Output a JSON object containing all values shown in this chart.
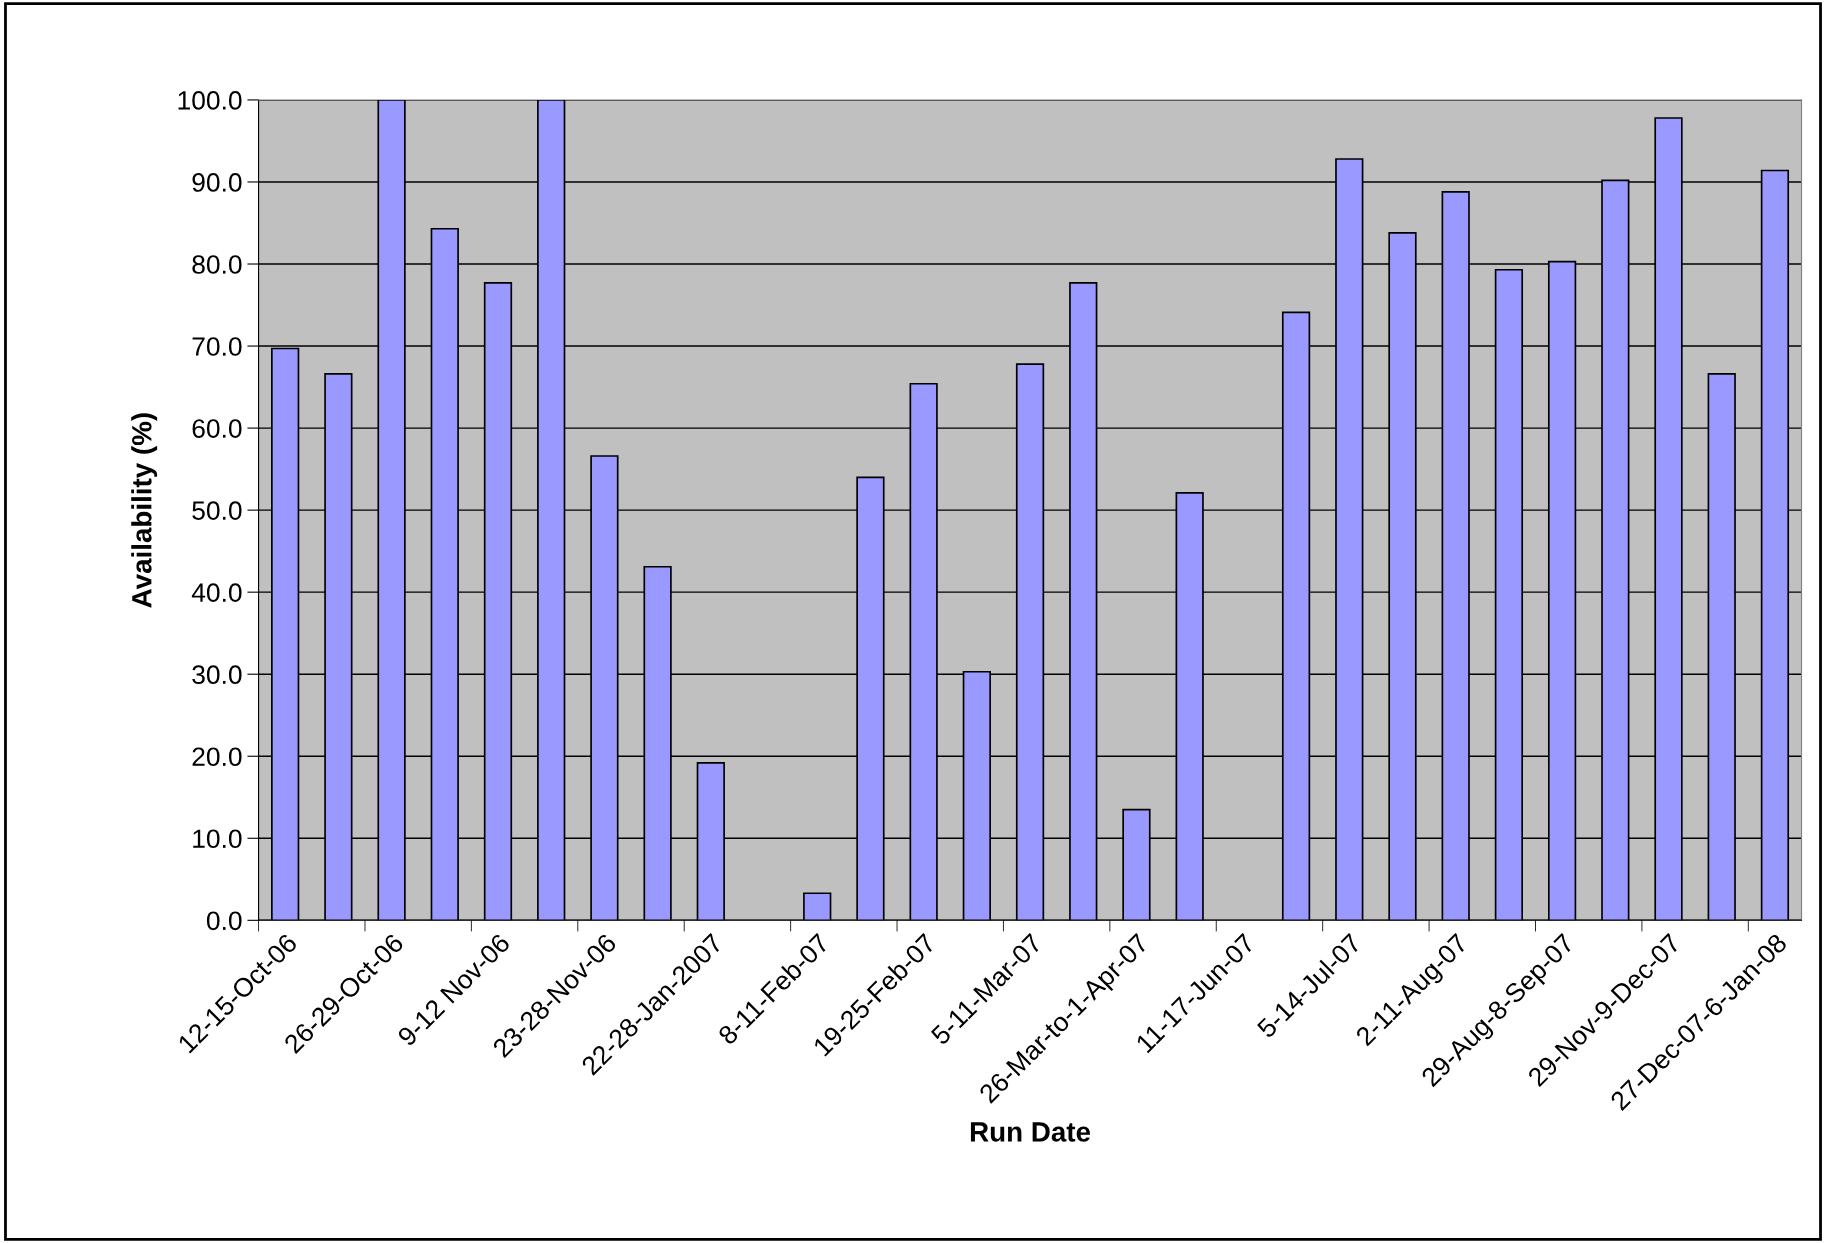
{
  "chart_data": {
    "type": "bar",
    "xlabel": "Run Date",
    "ylabel": "Availability (%)",
    "categories": [
      "12-15-Oct-06",
      null,
      "26-29-Oct-06",
      null,
      "9-12 Nov-06",
      null,
      "23-28-Nov-06",
      null,
      "22-28-Jan-2007",
      null,
      "8-11-Feb-07",
      null,
      "19-25-Feb-07",
      null,
      "5-11-Mar-07",
      null,
      "26-Mar-to-1-Apr-07",
      null,
      "11-17-Jun-07",
      null,
      "5-14-Jul-07",
      null,
      "2-11-Aug-07",
      null,
      "29-Aug-8-Sep-07",
      null,
      "29-Nov-9-Dec-07",
      null,
      "27-Dec-07-6-Jan-08"
    ],
    "values": [
      69.7,
      66.6,
      100.0,
      84.3,
      77.7,
      100.0,
      56.6,
      43.1,
      19.2,
      null,
      3.3,
      54.0,
      65.4,
      30.3,
      67.8,
      77.7,
      13.5,
      52.1,
      null,
      74.1,
      92.8,
      83.8,
      88.8,
      79.3,
      80.3,
      90.2,
      97.8,
      66.6,
      91.4
    ],
    "color": "#9999ff",
    "ylim": [
      0,
      100
    ],
    "yticks": [
      {
        "value": 0,
        "label": "0.0"
      },
      {
        "value": 10,
        "label": "10.0"
      },
      {
        "value": 20,
        "label": "20.0"
      },
      {
        "value": 30,
        "label": "30.0"
      },
      {
        "value": 40,
        "label": "40.0"
      },
      {
        "value": 50,
        "label": "50.0"
      },
      {
        "value": 60,
        "label": "60.0"
      },
      {
        "value": 70,
        "label": "70.0"
      },
      {
        "value": 80,
        "label": "80.0"
      },
      {
        "value": 90,
        "label": "90.0"
      },
      {
        "value": 100,
        "label": "100.0"
      }
    ],
    "grid": "y"
  }
}
